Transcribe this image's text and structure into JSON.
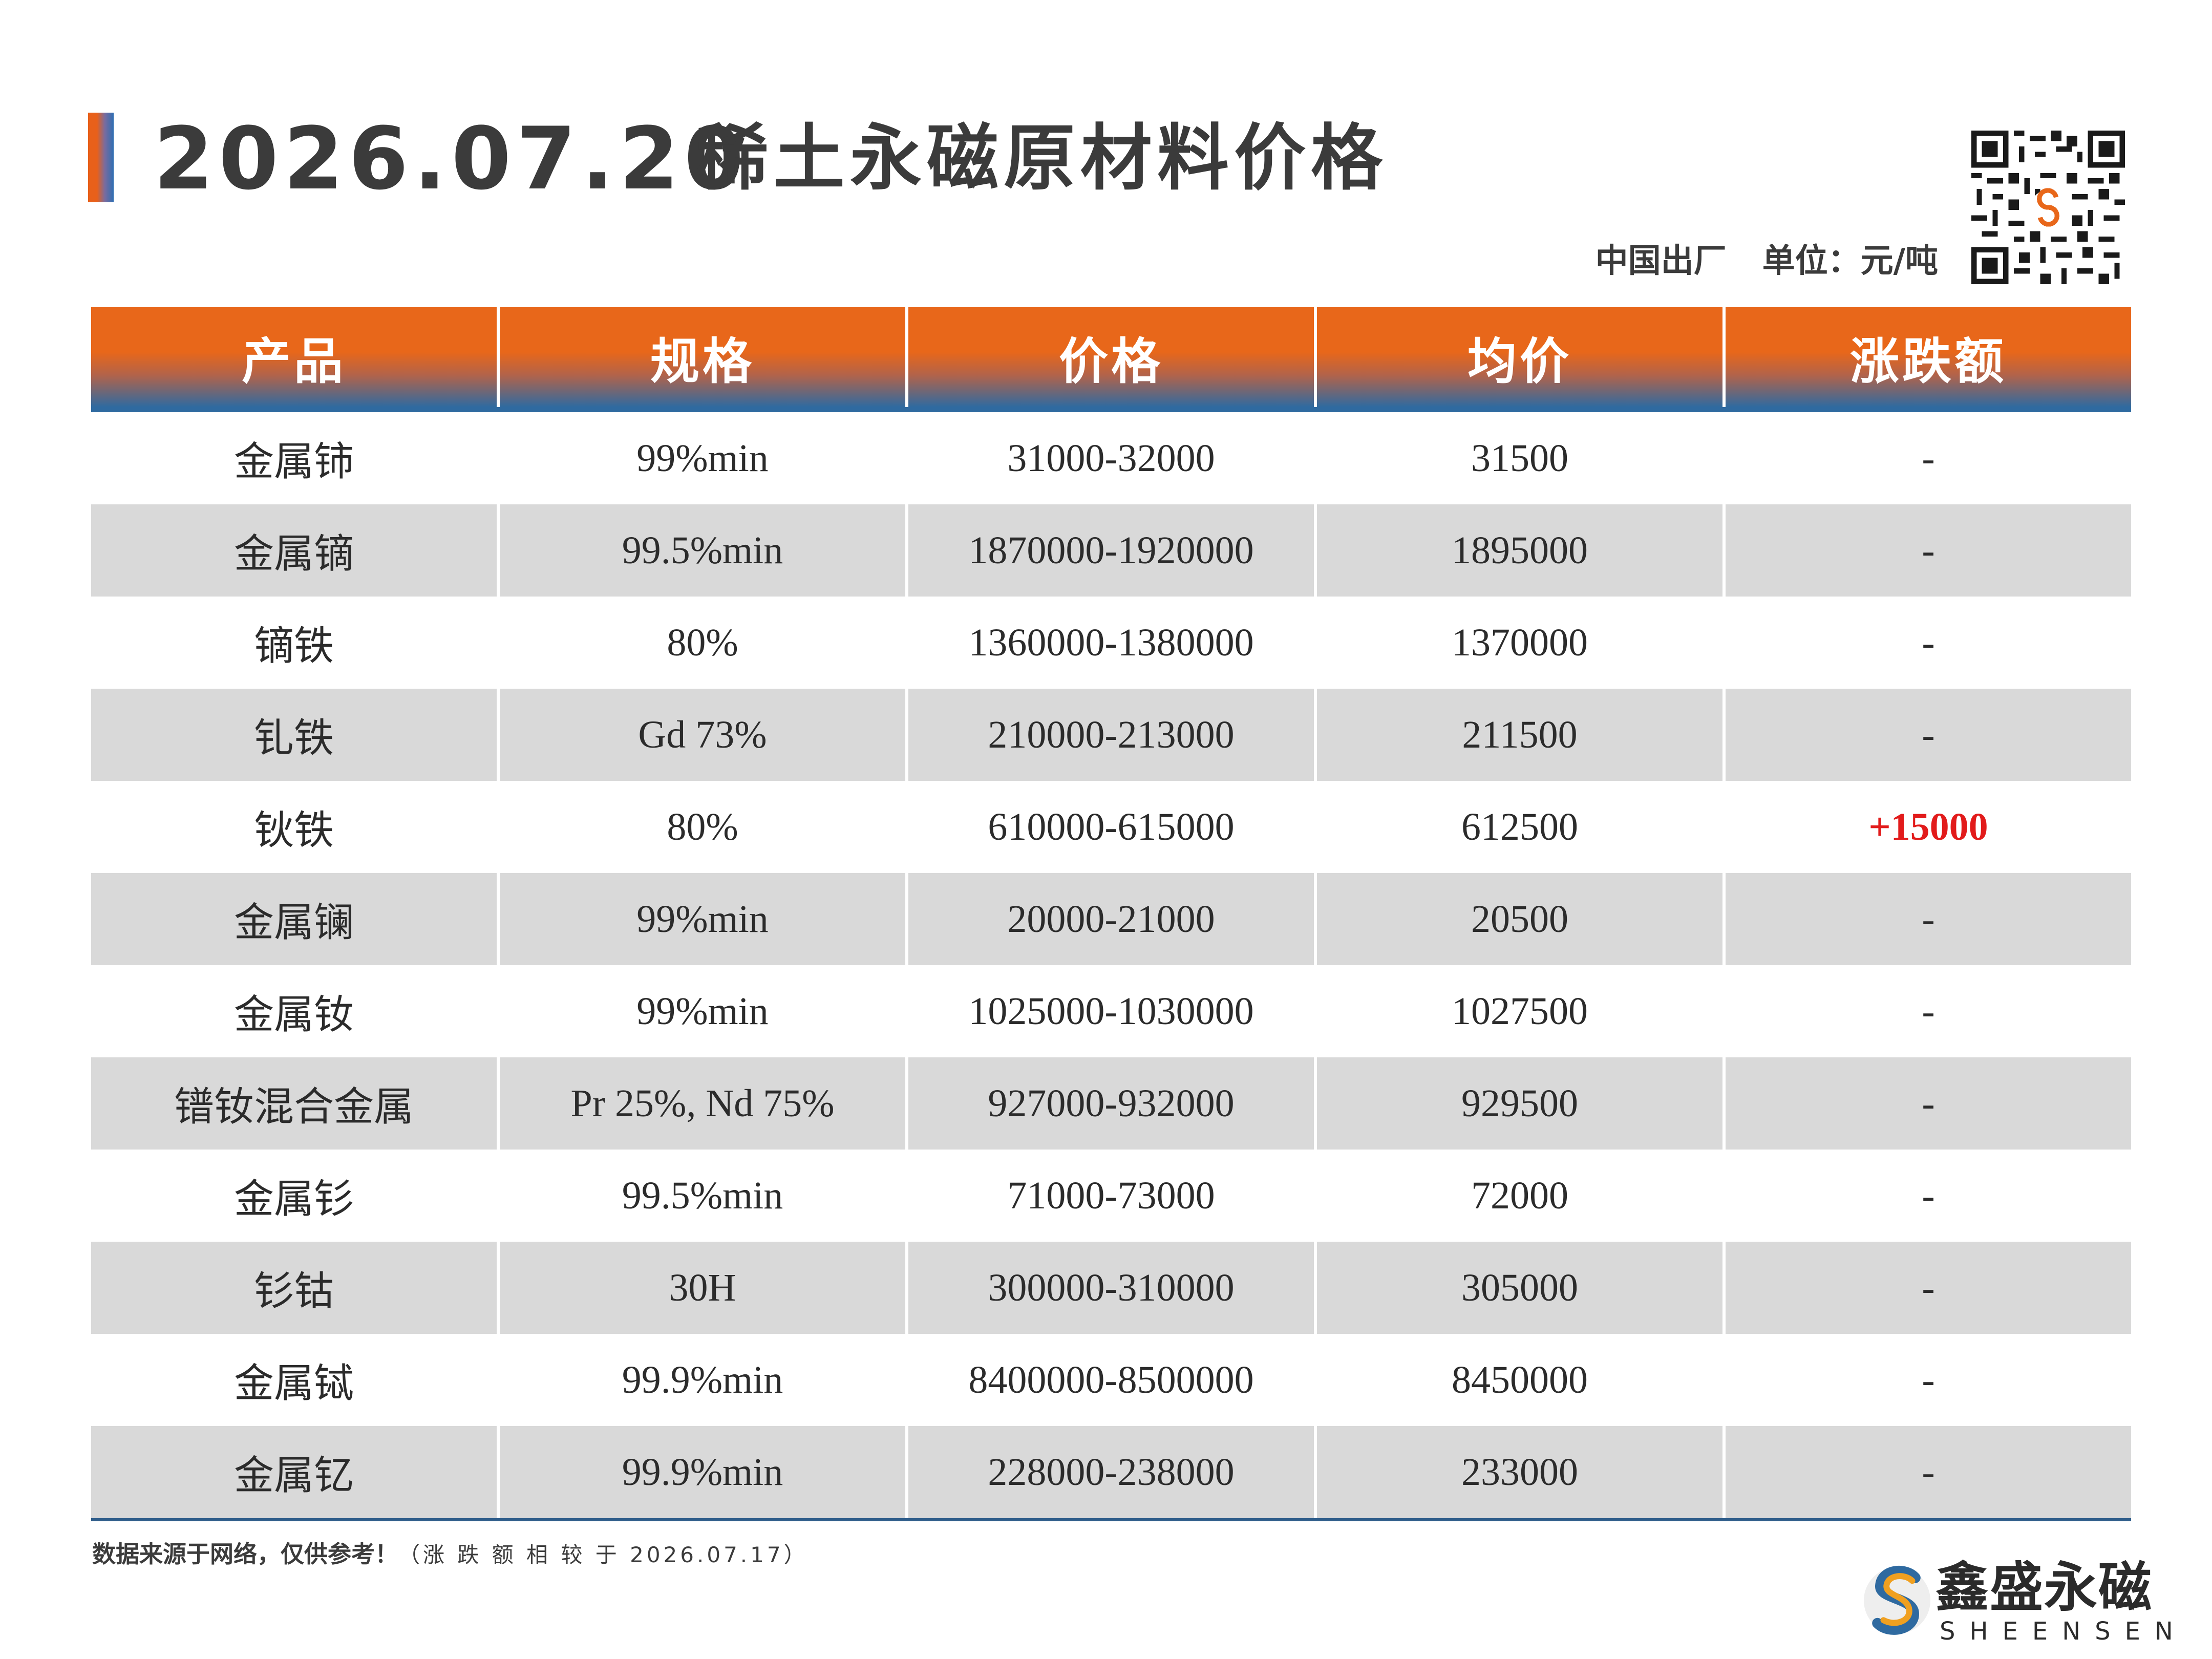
{
  "header": {
    "date": "2026.07.20",
    "title": "稀土永磁原材料价格",
    "origin": "中国出厂",
    "unit": "单位：元/吨"
  },
  "table": {
    "columns": [
      "产品",
      "规格",
      "价格",
      "均价",
      "涨跌额"
    ],
    "rows": [
      {
        "product": "金属铈",
        "spec": "99%min",
        "price": "31000-32000",
        "avg": "31500",
        "change": "-"
      },
      {
        "product": "金属镝",
        "spec": "99.5%min",
        "price": "1870000-1920000",
        "avg": "1895000",
        "change": "-"
      },
      {
        "product": "镝铁",
        "spec": "80%",
        "price": "1360000-1380000",
        "avg": "1370000",
        "change": "-"
      },
      {
        "product": "钆铁",
        "spec": "Gd 73%",
        "price": "210000-213000",
        "avg": "211500",
        "change": "-"
      },
      {
        "product": "钬铁",
        "spec": "80%",
        "price": "610000-615000",
        "avg": "612500",
        "change": "+15000"
      },
      {
        "product": "金属镧",
        "spec": "99%min",
        "price": "20000-21000",
        "avg": "20500",
        "change": "-"
      },
      {
        "product": "金属钕",
        "spec": "99%min",
        "price": "1025000-1030000",
        "avg": "1027500",
        "change": "-"
      },
      {
        "product": "镨钕混合金属",
        "spec": "Pr 25%, Nd 75%",
        "price": "927000-932000",
        "avg": "929500",
        "change": "-"
      },
      {
        "product": "金属钐",
        "spec": "99.5%min",
        "price": "71000-73000",
        "avg": "72000",
        "change": "-"
      },
      {
        "product": "钐钴",
        "spec": "30H",
        "price": "300000-310000",
        "avg": "305000",
        "change": "-"
      },
      {
        "product": "金属铽",
        "spec": "99.9%min",
        "price": "8400000-8500000",
        "avg": "8450000",
        "change": "-"
      },
      {
        "product": "金属钇",
        "spec": "99.9%min",
        "price": "228000-238000",
        "avg": "233000",
        "change": "-"
      }
    ]
  },
  "footer": {
    "source": "数据来源于网络，仅供参考！",
    "note": "（涨 跌 额 相 较 于 2026.07.17）"
  },
  "logo": {
    "name": "鑫盛永磁",
    "sub": "SHEENSEN",
    "icon": "sheensen-s-logo-icon"
  },
  "qr": {
    "icon": "qr-code-icon"
  },
  "colors": {
    "header_orange": "#e8671a",
    "header_blue": "#2f6aa0",
    "row_alt": "#d9d9d9",
    "up_red": "#e21b1b",
    "text": "#3b3b3b"
  }
}
